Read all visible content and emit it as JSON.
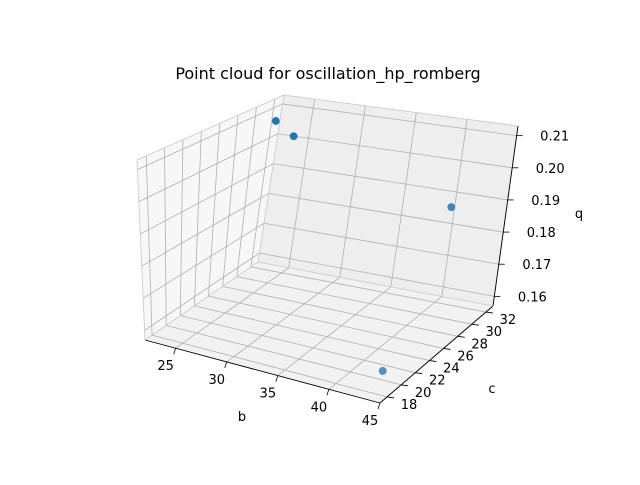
{
  "chart_data": {
    "type": "scatter",
    "projection": "3d",
    "title": "Point cloud for oscillation_hp_romberg",
    "xlabel": "b",
    "ylabel": "c",
    "zlabel": "q",
    "xlim": [
      22,
      45
    ],
    "ylim": [
      17,
      33
    ],
    "zlim": [
      0.157,
      0.213
    ],
    "xticks": [
      "25",
      "30",
      "35",
      "40",
      "45"
    ],
    "yticks": [
      "18",
      "20",
      "22",
      "24",
      "26",
      "28",
      "30",
      "32"
    ],
    "zticks": [
      "0.16",
      "0.17",
      "0.18",
      "0.19",
      "0.20",
      "0.21"
    ],
    "grid": true,
    "color": "#1f77b4",
    "points": [
      {
        "x": 22.0,
        "y": 32.5,
        "z": 0.205
      },
      {
        "x": 24.0,
        "y": 32.4,
        "z": 0.201
      },
      {
        "x": 40.0,
        "y": 32.5,
        "z": 0.186
      },
      {
        "x": 44.0,
        "y": 18.5,
        "z": 0.1625
      }
    ]
  }
}
